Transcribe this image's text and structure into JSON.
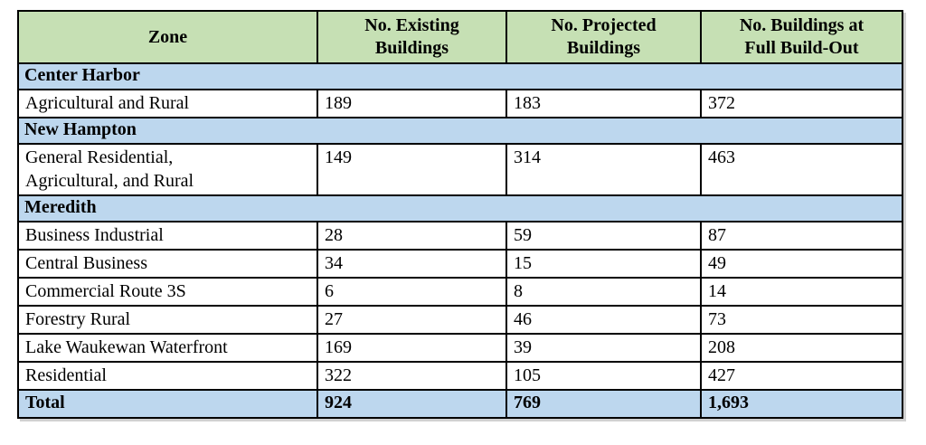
{
  "colors": {
    "header_bg": "#c6e0b4",
    "section_bg": "#bdd7ee",
    "total_bg": "#bdd7ee",
    "border": "#000000",
    "text": "#000000"
  },
  "table": {
    "columns": [
      {
        "label": "Zone"
      },
      {
        "label": "No. Existing\nBuildings"
      },
      {
        "label": "No. Projected\nBuildings"
      },
      {
        "label": "No. Buildings at\nFull Build-Out"
      }
    ],
    "sections": [
      {
        "name": "Center Harbor",
        "rows": [
          {
            "zone": "Agricultural and Rural",
            "existing": "189",
            "projected": "183",
            "full_build_out": "372"
          }
        ]
      },
      {
        "name": "New Hampton",
        "rows": [
          {
            "zone": "General Residential,\nAgricultural, and Rural",
            "existing": "149",
            "projected": "314",
            "full_build_out": "463"
          }
        ]
      },
      {
        "name": "Meredith",
        "rows": [
          {
            "zone": "Business Industrial",
            "existing": "28",
            "projected": "59",
            "full_build_out": "87"
          },
          {
            "zone": "Central Business",
            "existing": "34",
            "projected": "15",
            "full_build_out": "49"
          },
          {
            "zone": "Commercial Route 3S",
            "existing": "6",
            "projected": "8",
            "full_build_out": "14"
          },
          {
            "zone": "Forestry Rural",
            "existing": "27",
            "projected": "46",
            "full_build_out": "73"
          },
          {
            "zone": "Lake Waukewan Waterfront",
            "existing": "169",
            "projected": "39",
            "full_build_out": "208"
          },
          {
            "zone": "Residential",
            "existing": "322",
            "projected": "105",
            "full_build_out": "427"
          }
        ]
      }
    ],
    "total": {
      "label": "Total",
      "existing": "924",
      "projected": "769",
      "full_build_out": "1,693"
    }
  }
}
